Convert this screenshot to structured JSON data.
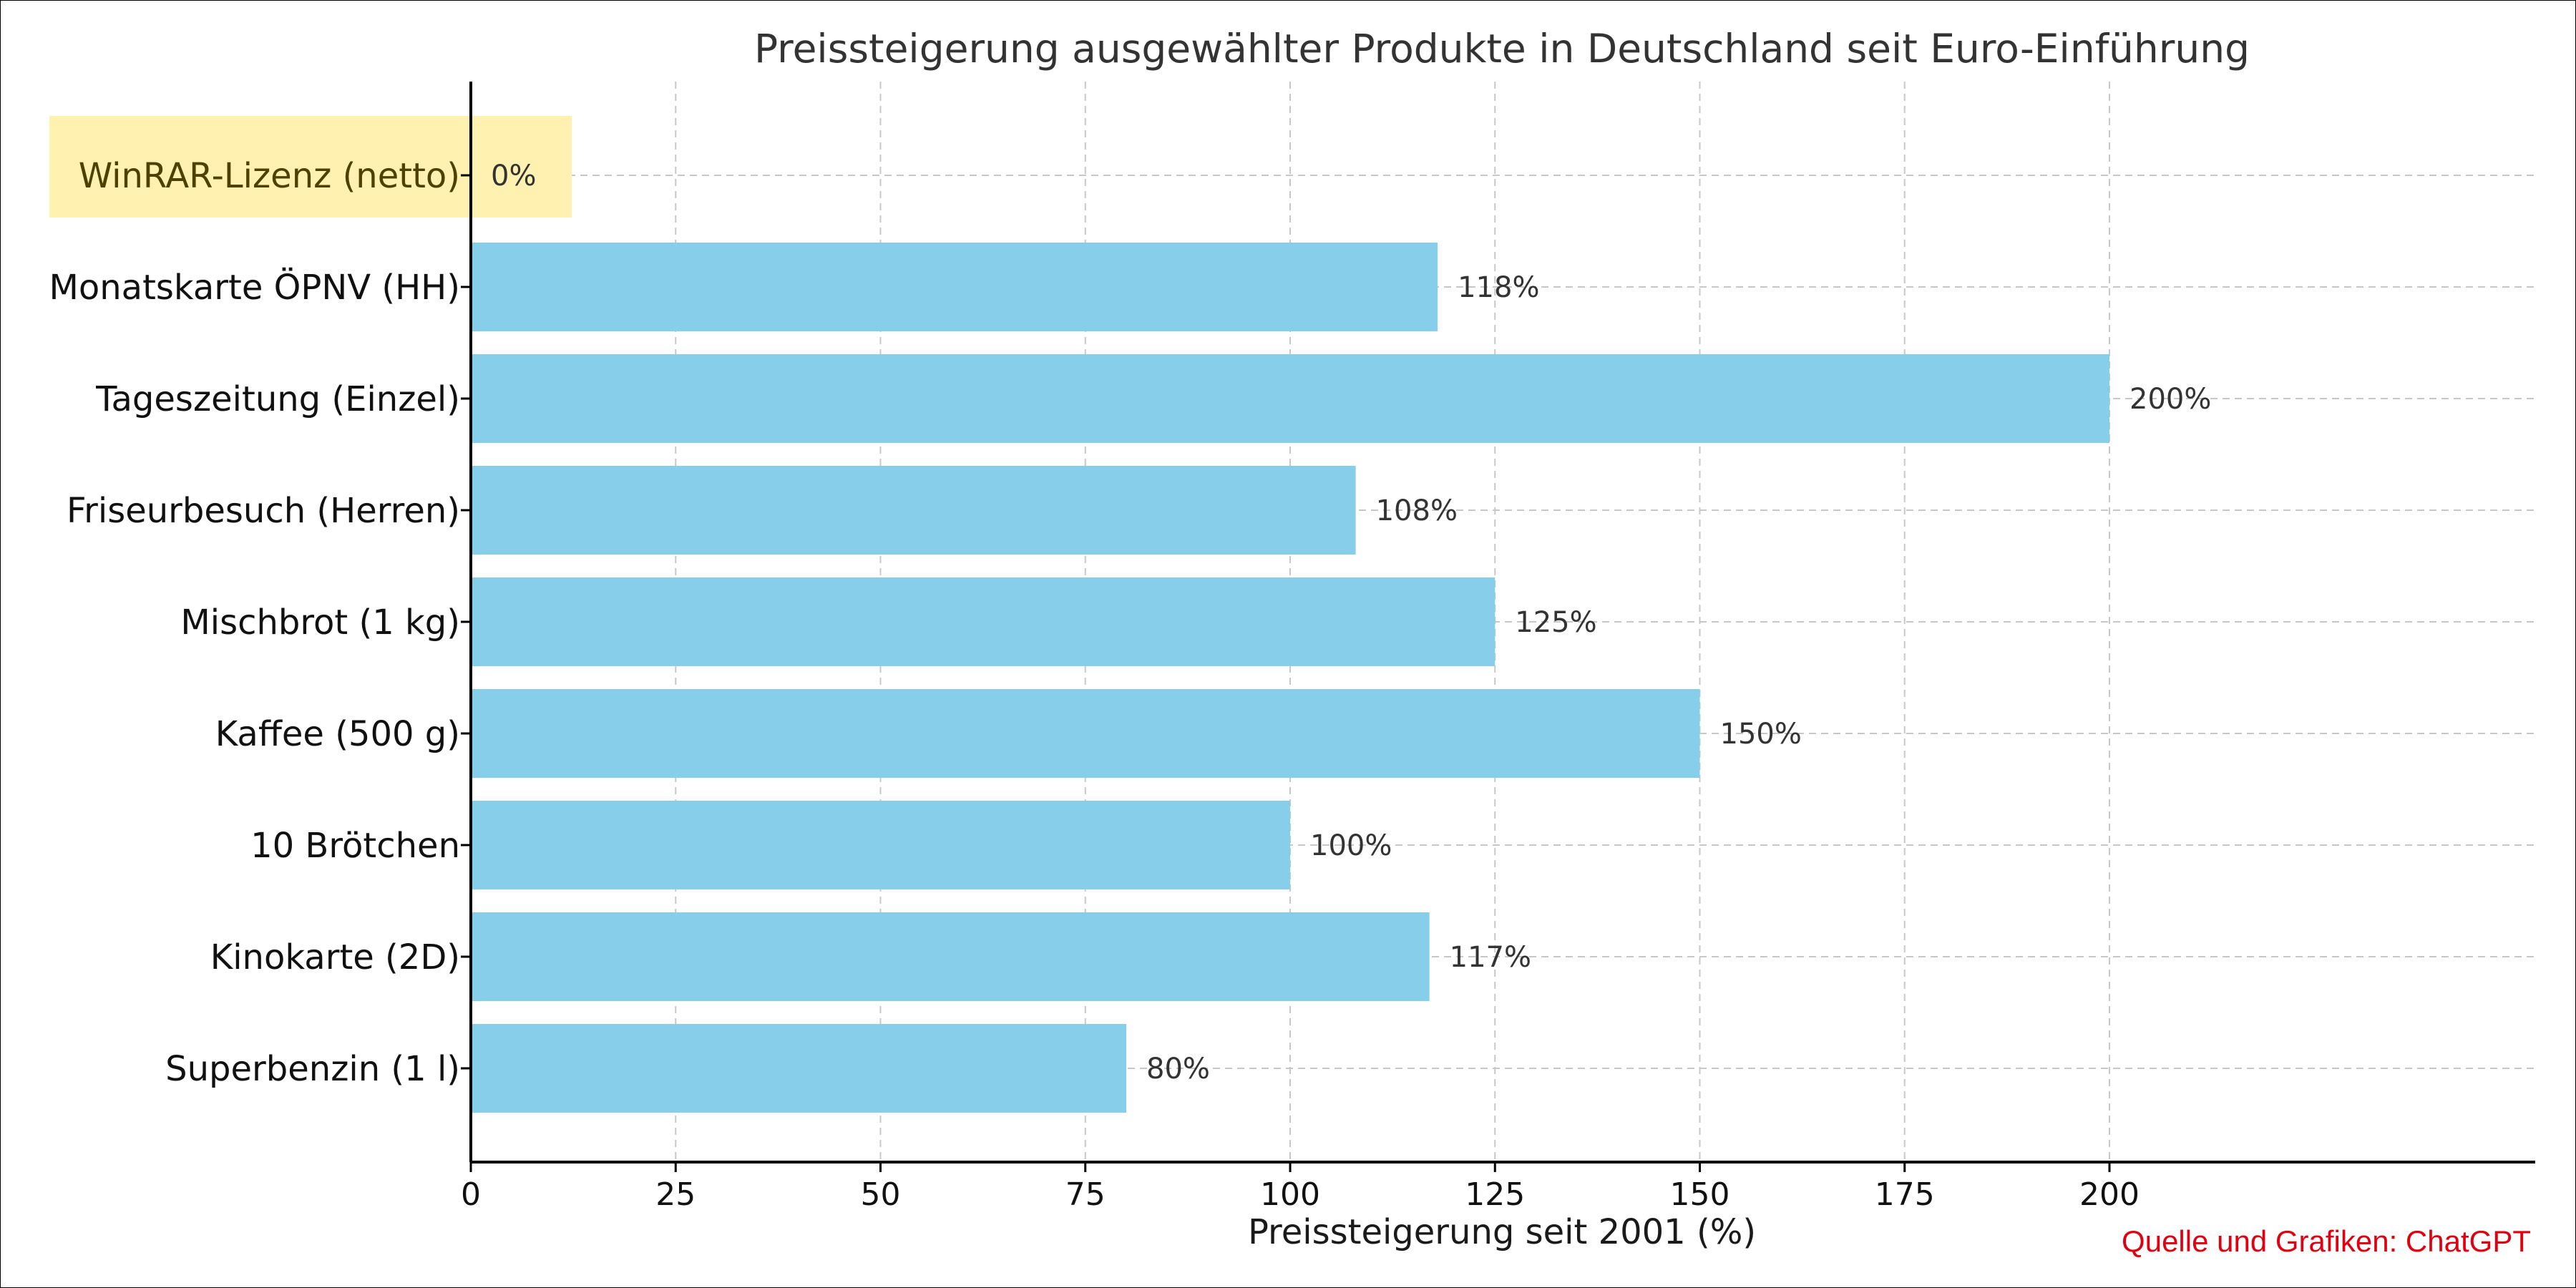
{
  "chart_data": {
    "type": "bar",
    "orientation": "horizontal",
    "title": "Preissteigerung ausgewählter Produkte in Deutschland seit Euro-Einführung",
    "xlabel": "Preissteigerung seit 2001 (%)",
    "ylabel": "",
    "xlim": [
      0,
      210
    ],
    "x_ticks": [
      0,
      25,
      50,
      75,
      100,
      125,
      150,
      175,
      200
    ],
    "grid": true,
    "categories": [
      "WinRAR-Lizenz (netto)",
      "Monatskarte ÖPNV (HH)",
      "Tageszeitung (Einzel)",
      "Friseurbesuch (Herren)",
      "Mischbrot (1 kg)",
      "Kaffee (500 g)",
      "10 Brötchen",
      "Kinokarte (2D)",
      "Superbenzin (1 l)"
    ],
    "values": [
      0,
      118,
      200,
      108,
      125,
      150,
      100,
      117,
      80
    ],
    "value_labels": [
      "0%",
      "118%",
      "200%",
      "108%",
      "125%",
      "150%",
      "100%",
      "117%",
      "80%"
    ],
    "highlighted_category": "WinRAR-Lizenz (netto)",
    "bar_color": "#87ceeb",
    "highlight_color": "#fff1b0",
    "highlight_text_color": "#4d4000"
  },
  "source_note": "Quelle und Grafiken: ChatGPT",
  "source_color": "#e0000f"
}
